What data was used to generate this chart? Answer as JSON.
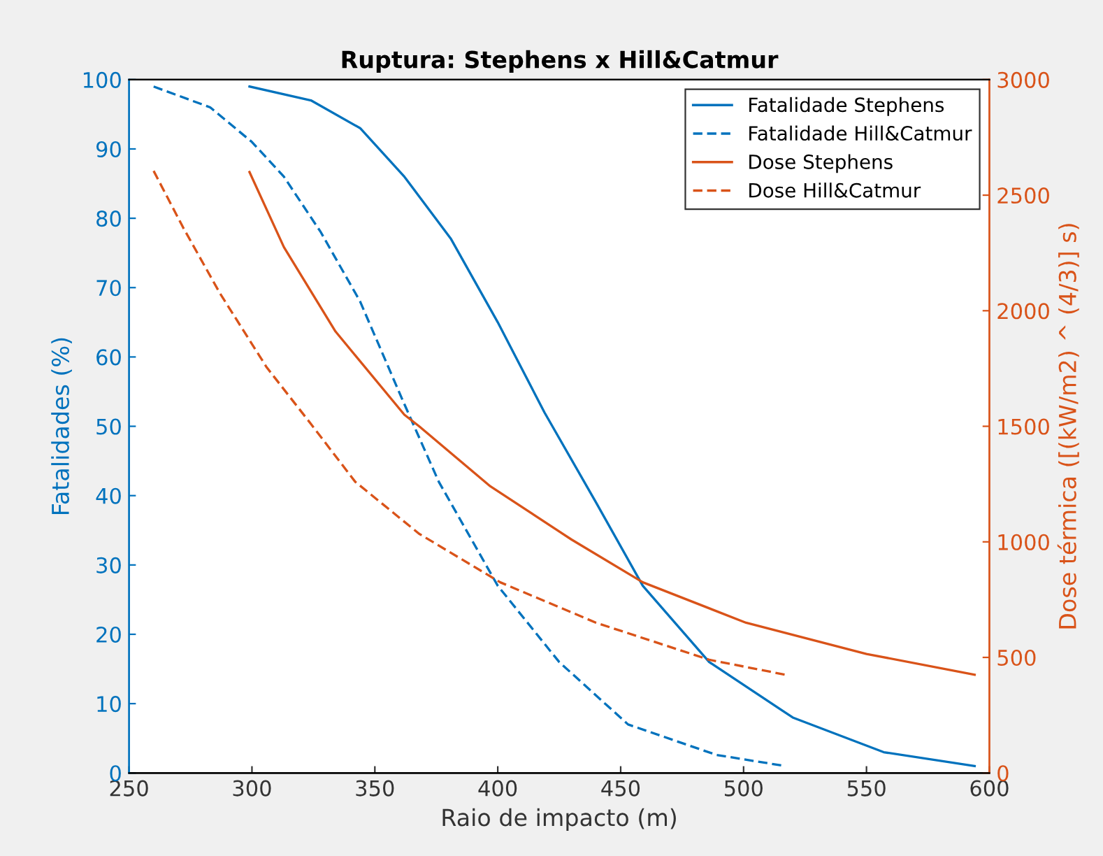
{
  "chart_data": {
    "type": "line",
    "title": "Ruptura: Stephens x Hill&Catmur",
    "xlabel": "Raio de impacto (m)",
    "ylabel": "Fatalidades (%)",
    "y2label": "Dose térmica ([(kW/m2) ^ (4/3)] s)",
    "xlim": [
      250,
      600
    ],
    "xticks": [
      250,
      300,
      350,
      400,
      450,
      500,
      550,
      600
    ],
    "ylim": [
      0,
      100
    ],
    "yticks": [
      0,
      10,
      20,
      30,
      40,
      50,
      60,
      70,
      80,
      90,
      100
    ],
    "y2lim": [
      0,
      3000
    ],
    "y2ticks": [
      0,
      500,
      1000,
      1500,
      2000,
      2500,
      3000
    ],
    "grid": false,
    "legend": "top right",
    "series": [
      {
        "name": "Fatalidade Stephens",
        "color": "#0072bd",
        "line_style": "solid",
        "x": [
          299,
          324,
          344,
          362,
          381,
          400,
          419,
          440,
          459,
          486,
          520,
          557,
          594
        ],
        "values": [
          99,
          97,
          93,
          86,
          77,
          65,
          52,
          39,
          27,
          16,
          8,
          3,
          1
        ]
      },
      {
        "name": "Fatalidade Hill&Catmur",
        "color": "#0072bd",
        "line_style": "dashed",
        "x": [
          260,
          283,
          300,
          313,
          328,
          344,
          361,
          376,
          400,
          425,
          453,
          489,
          517
        ],
        "values": [
          99,
          96,
          91,
          86,
          78,
          68,
          54,
          42,
          27,
          16,
          7,
          2.6,
          1
        ]
      },
      {
        "name": "Dose Stephens",
        "color": "#d95319",
        "line_style": "solid",
        "axis": "y2",
        "x": [
          299,
          313,
          334,
          362,
          368,
          397,
          430,
          459,
          501,
          550,
          594
        ],
        "values": [
          2600,
          2275,
          1910,
          1550,
          1500,
          1240,
          1010,
          825,
          650,
          515,
          425
        ]
      },
      {
        "name": "Dose Hill&Catmur",
        "color": "#d95319",
        "line_style": "dashed",
        "axis": "y2",
        "x": [
          260,
          272,
          287,
          306,
          324,
          342,
          368,
          401,
          440,
          486,
          517
        ],
        "values": [
          2605,
          2360,
          2075,
          1755,
          1510,
          1260,
          1035,
          825,
          650,
          490,
          425
        ]
      }
    ]
  }
}
